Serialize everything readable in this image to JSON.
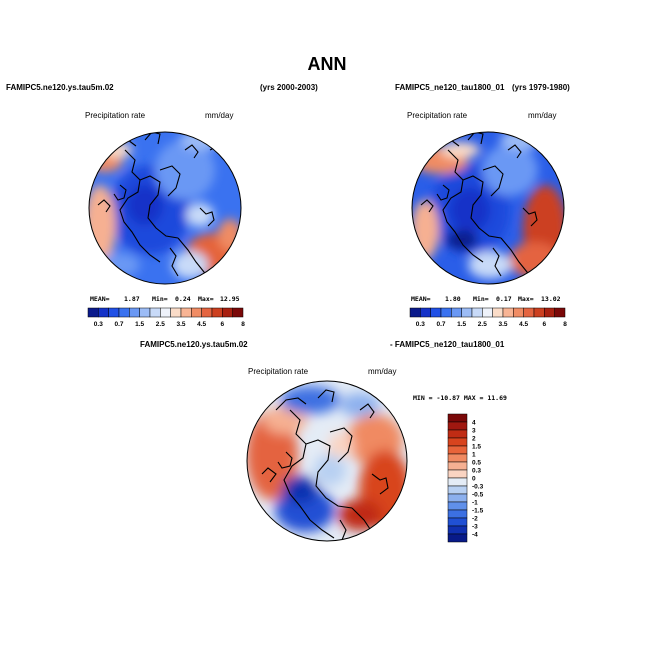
{
  "title": "ANN",
  "panel1": {
    "case": "FAMIPC5.ne120.ys.tau5m.02",
    "years": "(yrs 2000-2003)",
    "variable": "Precipitation rate",
    "units": "mm/day",
    "mean_label": "MEAN=",
    "mean": "1.87",
    "min_label": "Min=",
    "min": "0.24",
    "max_label": "Max=",
    "max": "12.95"
  },
  "panel2": {
    "case": "FAMIPC5_ne120_tau1800_01",
    "years": "(yrs 1979-1980)",
    "variable": "Precipitation rate",
    "units": "mm/day",
    "mean_label": "MEAN=",
    "mean": "1.80",
    "min_label": "Min=",
    "min": "0.17",
    "max_label": "Max=",
    "max": "13.02"
  },
  "panel3": {
    "case_a": "FAMIPC5.ne120.ys.tau5m.02",
    "case_b": "- FAMIPC5_ne120_tau1800_01",
    "variable": "Precipitation rate",
    "units": "mm/day",
    "minmax": "MIN = -10.87  MAX =  11.69"
  },
  "colorbar_abs": {
    "labels": [
      "0.3",
      "0.7",
      "1.5",
      "2.5",
      "3.5",
      "4.5",
      "6",
      "8"
    ],
    "colors": [
      "#0a1a8c",
      "#1432c8",
      "#2050e6",
      "#3a72f0",
      "#6a98f4",
      "#9cbcf6",
      "#c8daf8",
      "#eef2fa",
      "#fadcc8",
      "#f8b494",
      "#f08c64",
      "#e46440",
      "#cc4020",
      "#a82010",
      "#7a0808"
    ]
  },
  "colorbar_diff": {
    "labels": [
      "4",
      "3",
      "2",
      "1.5",
      "1",
      "0.5",
      "0.3",
      "0",
      "-0.3",
      "-0.5",
      "-1",
      "-1.5",
      "-2",
      "-3",
      "-4"
    ],
    "colors": [
      "#7a0808",
      "#a01810",
      "#c02c14",
      "#d8441e",
      "#e8643a",
      "#f08a62",
      "#f6b092",
      "#fad4c2",
      "#e4ecf6",
      "#b8d0f2",
      "#8cb0ee",
      "#6090ea",
      "#3c70e2",
      "#2050d4",
      "#1030b0",
      "#081a88"
    ]
  }
}
